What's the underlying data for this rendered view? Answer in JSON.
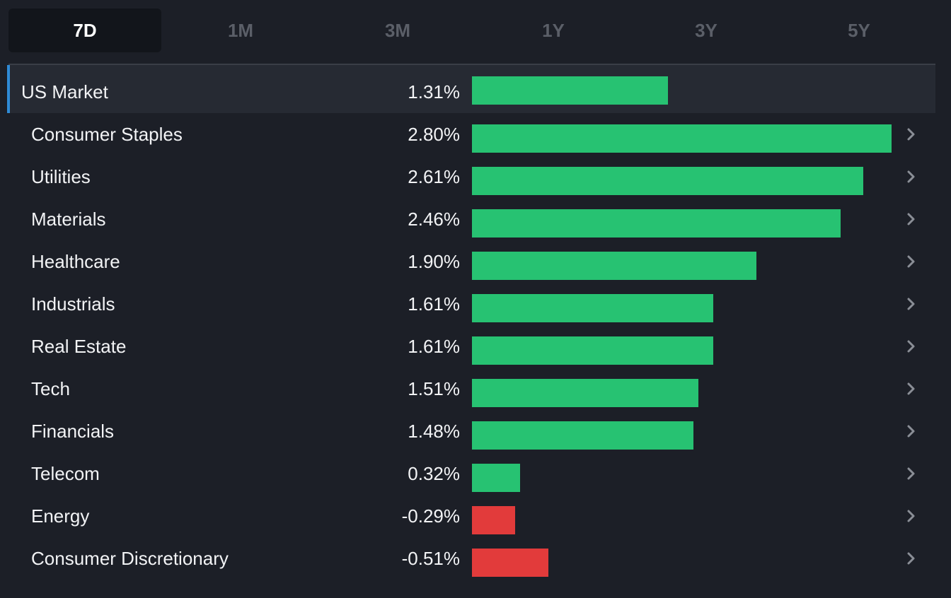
{
  "tabs": [
    {
      "label": "7D",
      "active": true
    },
    {
      "label": "1M",
      "active": false
    },
    {
      "label": "3M",
      "active": false
    },
    {
      "label": "1Y",
      "active": false
    },
    {
      "label": "3Y",
      "active": false
    },
    {
      "label": "5Y",
      "active": false
    }
  ],
  "colors": {
    "positive": "#27c272",
    "negative": "#e23b3b",
    "chevron": "#8a8e96"
  },
  "chart_data": {
    "type": "bar",
    "categories": [
      "US Market",
      "Consumer Staples",
      "Utilities",
      "Materials",
      "Healthcare",
      "Industrials",
      "Real Estate",
      "Tech",
      "Financials",
      "Telecom",
      "Energy",
      "Consumer Discretionary"
    ],
    "values": [
      1.31,
      2.8,
      2.61,
      2.46,
      1.9,
      1.61,
      1.61,
      1.51,
      1.48,
      0.32,
      -0.29,
      -0.51
    ],
    "labels": [
      "1.31%",
      "2.80%",
      "2.61%",
      "2.46%",
      "1.90%",
      "1.61%",
      "1.61%",
      "1.51%",
      "1.48%",
      "0.32%",
      "-0.29%",
      "-0.51%"
    ]
  },
  "rows": [
    {
      "name": "US Market",
      "value": "1.31%",
      "highlight": true,
      "chevron": false
    },
    {
      "name": "Consumer Staples",
      "value": "2.80%",
      "highlight": false,
      "chevron": true
    },
    {
      "name": "Utilities",
      "value": "2.61%",
      "highlight": false,
      "chevron": true
    },
    {
      "name": "Materials",
      "value": "2.46%",
      "highlight": false,
      "chevron": true
    },
    {
      "name": "Healthcare",
      "value": "1.90%",
      "highlight": false,
      "chevron": true
    },
    {
      "name": "Industrials",
      "value": "1.61%",
      "highlight": false,
      "chevron": true
    },
    {
      "name": "Real Estate",
      "value": "1.61%",
      "highlight": false,
      "chevron": true
    },
    {
      "name": "Tech",
      "value": "1.51%",
      "highlight": false,
      "chevron": true
    },
    {
      "name": "Financials",
      "value": "1.48%",
      "highlight": false,
      "chevron": true
    },
    {
      "name": "Telecom",
      "value": "0.32%",
      "highlight": false,
      "chevron": true
    },
    {
      "name": "Energy",
      "value": "-0.29%",
      "highlight": false,
      "chevron": true
    },
    {
      "name": "Consumer Discretionary",
      "value": "-0.51%",
      "highlight": false,
      "chevron": true
    }
  ]
}
